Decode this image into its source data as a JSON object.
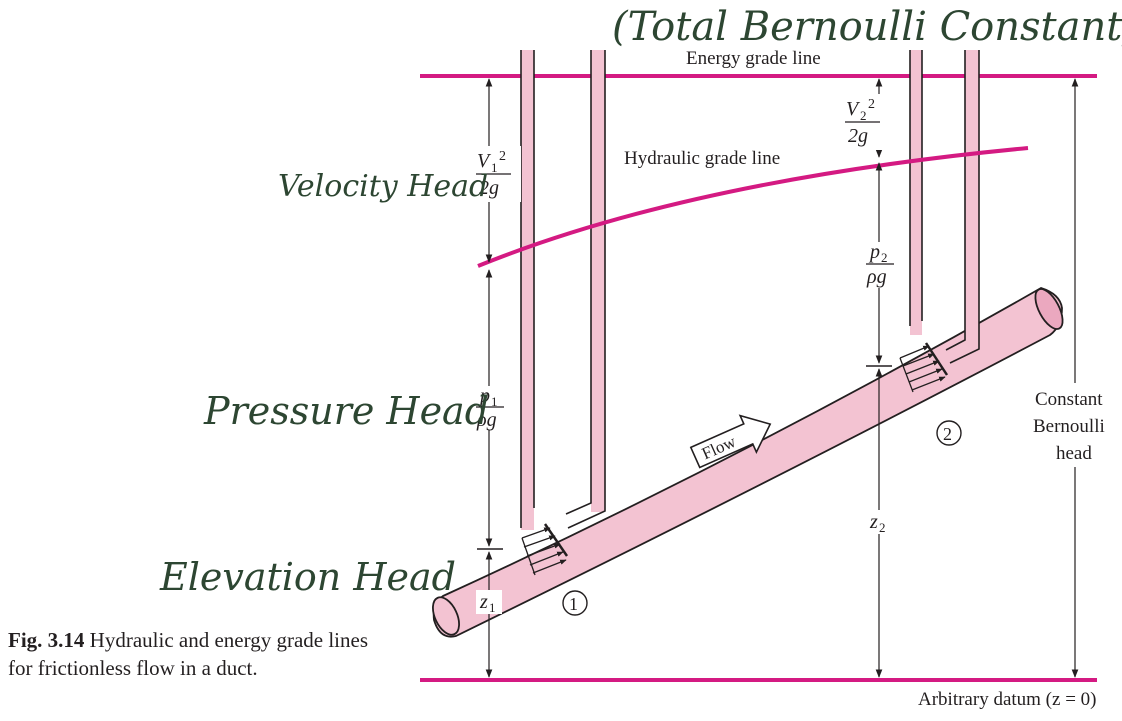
{
  "title_handwritten": "(Total Bernoulli Constant)",
  "lines": {
    "energy_grade": "Energy grade line",
    "hydraulic_grade": "Hydraulic grade line",
    "datum": "Arbitrary datum (z = 0)"
  },
  "heads": {
    "velocity": "Velocity Head",
    "pressure": "Pressure Head",
    "elevation": "Elevation Head"
  },
  "symbols": {
    "V1": "V",
    "sub1": "1",
    "sq": "2",
    "twog": "2g",
    "V2": "V",
    "sub2": "2",
    "p1": "p",
    "p2": "p",
    "rhog": "ρg",
    "z1": "z",
    "z2": "z"
  },
  "flow_label": "Flow",
  "stations": {
    "s1": "1",
    "s2": "2"
  },
  "constant": {
    "l1": "Constant",
    "l2": "Bernoulli",
    "l3": "head"
  },
  "caption": {
    "label": "Fig. 3.14",
    "text": " Hydraulic and energy grade lines for frictionless flow in a duct."
  },
  "colors": {
    "line_magenta": "#d41a82",
    "pipe_fill": "#f3c3d2",
    "ink": "#231f20",
    "handwriting": "#2d4632"
  }
}
